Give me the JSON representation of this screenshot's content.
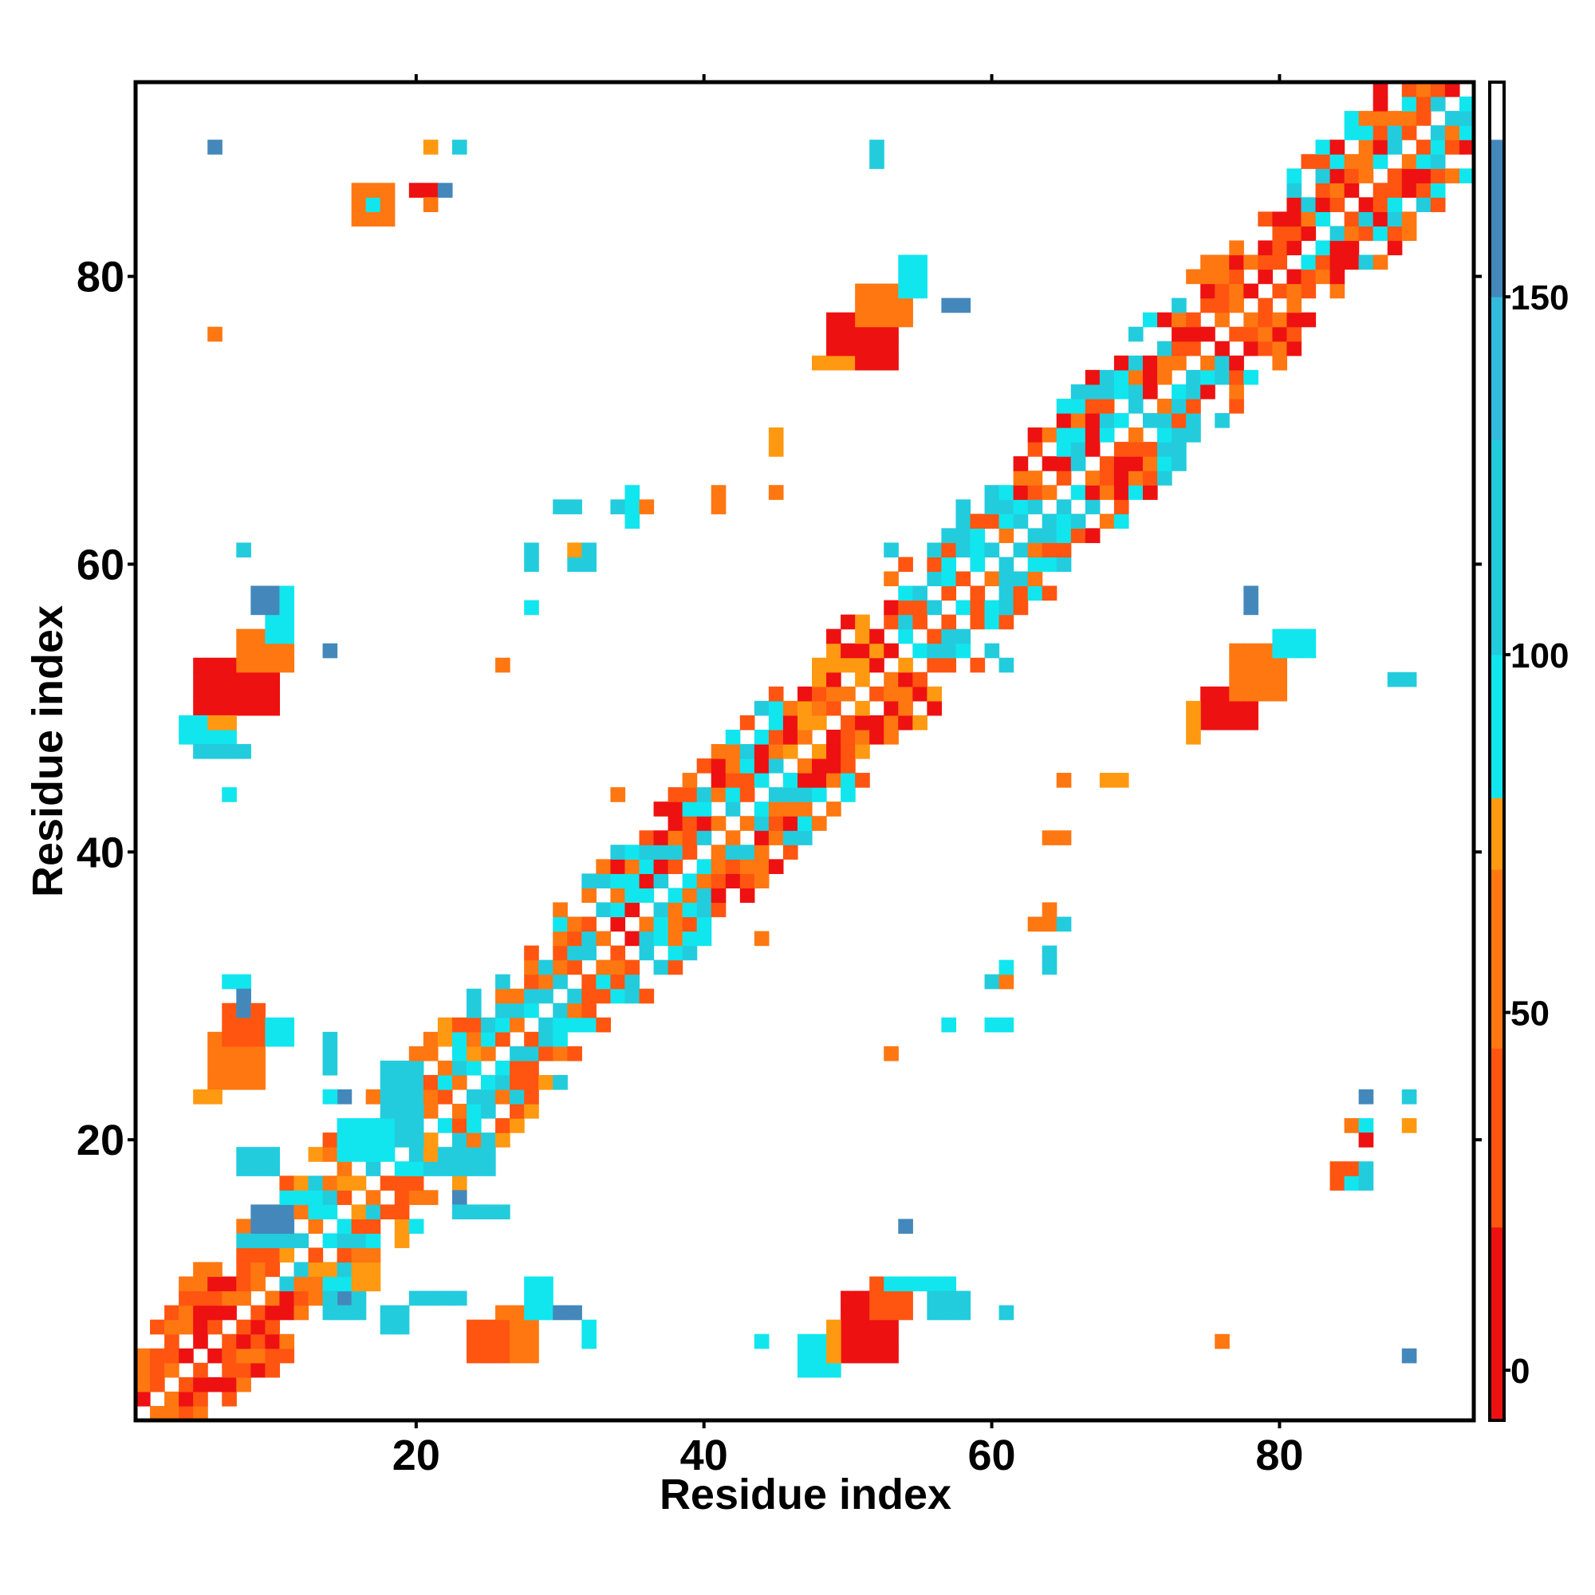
{
  "chart_data": {
    "type": "heatmap",
    "title": "",
    "xlabel": "Residue index",
    "ylabel": "Residue index",
    "xlim": [
      0.5,
      93.5
    ],
    "ylim": [
      0.5,
      93.5
    ],
    "xticks": [
      20,
      40,
      60,
      80
    ],
    "yticks": [
      20,
      40,
      60,
      80
    ],
    "xtick_labels": [
      "20",
      "40",
      "60",
      "80"
    ],
    "ytick_labels": [
      "20",
      "40",
      "60",
      "80"
    ],
    "grid": false,
    "colorbar": {
      "range": [
        -7,
        180
      ],
      "ticks": [
        0,
        50,
        100,
        150
      ],
      "tick_labels": [
        "0",
        "50",
        "100",
        "150"
      ],
      "bands": [
        {
          "from": -7,
          "to": 20,
          "color": "#ee1111"
        },
        {
          "from": 20,
          "to": 45,
          "color": "#ff5511"
        },
        {
          "from": 45,
          "to": 70,
          "color": "#ff7711"
        },
        {
          "from": 70,
          "to": 80,
          "color": "#ff9911"
        },
        {
          "from": 80,
          "to": 100,
          "color": "#11e6ee"
        },
        {
          "from": 100,
          "to": 130,
          "color": "#22ccdd"
        },
        {
          "from": 130,
          "to": 150,
          "color": "#33bbdd"
        },
        {
          "from": 150,
          "to": 172,
          "color": "#4488bb"
        },
        {
          "from": 172,
          "to": 180,
          "color": "#ffffff"
        }
      ]
    },
    "colors": {
      "red": "#ee1111",
      "orange_red": "#ff5511",
      "orange": "#ff7711",
      "amber": "#ff9911",
      "cyan": "#11e6ee",
      "sky": "#22ccdd",
      "steel": "#4488bb"
    },
    "diagonal": {
      "band_width": 6,
      "segments": [
        {
          "from": 1,
          "to": 10,
          "palette": [
            "red",
            "orange_red",
            "orange"
          ]
        },
        {
          "from": 10,
          "to": 25,
          "palette": [
            "cyan",
            "sky",
            "orange_red",
            "orange",
            "amber"
          ]
        },
        {
          "from": 25,
          "to": 34,
          "palette": [
            "orange_red",
            "orange",
            "sky",
            "cyan"
          ]
        },
        {
          "from": 34,
          "to": 46,
          "palette": [
            "cyan",
            "sky",
            "orange_red",
            "orange",
            "red"
          ]
        },
        {
          "from": 46,
          "to": 54,
          "palette": [
            "orange_red",
            "red",
            "amber",
            "orange"
          ]
        },
        {
          "from": 54,
          "to": 59,
          "palette": [
            "cyan",
            "sky",
            "orange_red"
          ]
        },
        {
          "from": 59,
          "to": 75,
          "palette": [
            "orange_red",
            "orange",
            "sky",
            "cyan",
            "red"
          ]
        },
        {
          "from": 75,
          "to": 81,
          "palette": [
            "red",
            "orange_red",
            "orange"
          ]
        },
        {
          "from": 81,
          "to": 93,
          "palette": [
            "sky",
            "cyan",
            "orange_red",
            "orange",
            "red"
          ]
        }
      ]
    },
    "contact_blocks": [
      {
        "x": [
          49,
          53
        ],
        "y": [
          74,
          77
        ],
        "color": "red"
      },
      {
        "x": [
          51,
          54
        ],
        "y": [
          77,
          79
        ],
        "color": "orange"
      },
      {
        "x": [
          54,
          55
        ],
        "y": [
          79,
          81
        ],
        "color": "cyan"
      },
      {
        "x": [
          57,
          58
        ],
        "y": [
          78,
          78
        ],
        "color": "steel"
      },
      {
        "x": [
          48,
          50
        ],
        "y": [
          74,
          74
        ],
        "color": "amber"
      },
      {
        "x": [
          5,
          10
        ],
        "y": [
          50,
          53
        ],
        "color": "red"
      },
      {
        "x": [
          8,
          11
        ],
        "y": [
          53,
          55
        ],
        "color": "orange"
      },
      {
        "x": [
          10,
          11
        ],
        "y": [
          55,
          58
        ],
        "color": "cyan"
      },
      {
        "x": [
          9,
          10
        ],
        "y": [
          57,
          58
        ],
        "color": "steel"
      },
      {
        "x": [
          4,
          7
        ],
        "y": [
          48,
          49
        ],
        "color": "cyan"
      },
      {
        "x": [
          6,
          7
        ],
        "y": [
          49,
          49
        ],
        "color": "amber"
      },
      {
        "x": [
          5,
          8
        ],
        "y": [
          47,
          47
        ],
        "color": "sky"
      },
      {
        "x": [
          75,
          78
        ],
        "y": [
          49,
          51
        ],
        "color": "red"
      },
      {
        "x": [
          77,
          80
        ],
        "y": [
          51,
          54
        ],
        "color": "orange"
      },
      {
        "x": [
          80,
          82
        ],
        "y": [
          54,
          55
        ],
        "color": "cyan"
      },
      {
        "x": [
          74,
          74
        ],
        "y": [
          48,
          50
        ],
        "color": "amber"
      },
      {
        "x": [
          50,
          53
        ],
        "y": [
          5,
          9
        ],
        "color": "red"
      },
      {
        "x": [
          52,
          54
        ],
        "y": [
          8,
          10
        ],
        "color": "orange_red"
      },
      {
        "x": [
          53,
          57
        ],
        "y": [
          10,
          10
        ],
        "color": "cyan"
      },
      {
        "x": [
          56,
          58
        ],
        "y": [
          8,
          9
        ],
        "color": "sky"
      },
      {
        "x": [
          47,
          49
        ],
        "y": [
          4,
          6
        ],
        "color": "cyan"
      },
      {
        "x": [
          49,
          49
        ],
        "y": [
          5,
          7
        ],
        "color": "amber"
      },
      {
        "x": [
          26,
          28
        ],
        "y": [
          5,
          8
        ],
        "color": "orange"
      },
      {
        "x": [
          24,
          26
        ],
        "y": [
          5,
          7
        ],
        "color": "orange_red"
      },
      {
        "x": [
          28,
          29
        ],
        "y": [
          8,
          10
        ],
        "color": "cyan"
      },
      {
        "x": [
          30,
          31
        ],
        "y": [
          8,
          8
        ],
        "color": "steel"
      },
      {
        "x": [
          6,
          9
        ],
        "y": [
          24,
          27
        ],
        "color": "orange"
      },
      {
        "x": [
          7,
          9
        ],
        "y": [
          27,
          29
        ],
        "color": "orange_red"
      },
      {
        "x": [
          10,
          11
        ],
        "y": [
          27,
          28
        ],
        "color": "cyan"
      },
      {
        "x": [
          5,
          6
        ],
        "y": [
          23,
          23
        ],
        "color": "amber"
      },
      {
        "x": [
          18,
          20
        ],
        "y": [
          20,
          25
        ],
        "color": "sky"
      },
      {
        "x": [
          15,
          18
        ],
        "y": [
          19,
          21
        ],
        "color": "cyan"
      },
      {
        "x": [
          8,
          10
        ],
        "y": [
          18,
          19
        ],
        "color": "sky"
      },
      {
        "x": [
          9,
          11
        ],
        "y": [
          14,
          15
        ],
        "color": "steel"
      },
      {
        "x": [
          8,
          12
        ],
        "y": [
          13,
          13
        ],
        "color": "sky"
      },
      {
        "x": [
          16,
          18
        ],
        "y": [
          84,
          86
        ],
        "color": "orange"
      },
      {
        "x": [
          17,
          17
        ],
        "y": [
          85,
          85
        ],
        "color": "cyan"
      },
      {
        "x": [
          20,
          21
        ],
        "y": [
          86,
          86
        ],
        "color": "red"
      },
      {
        "x": [
          21,
          21
        ],
        "y": [
          85,
          85
        ],
        "color": "orange"
      },
      {
        "x": [
          22,
          22
        ],
        "y": [
          86,
          86
        ],
        "color": "steel"
      },
      {
        "x": [
          21,
          21
        ],
        "y": [
          89,
          89
        ],
        "color": "amber"
      },
      {
        "x": [
          23,
          23
        ],
        "y": [
          89,
          89
        ],
        "color": "sky"
      },
      {
        "x": [
          6,
          6
        ],
        "y": [
          89,
          89
        ],
        "color": "steel"
      },
      {
        "x": [
          52,
          52
        ],
        "y": [
          88,
          89
        ],
        "color": "sky"
      },
      {
        "x": [
          6,
          6
        ],
        "y": [
          76,
          76
        ],
        "color": "orange"
      },
      {
        "x": [
          45,
          45
        ],
        "y": [
          68,
          69
        ],
        "color": "amber"
      },
      {
        "x": [
          45,
          45
        ],
        "y": [
          65,
          65
        ],
        "color": "orange"
      },
      {
        "x": [
          41,
          41
        ],
        "y": [
          64,
          65
        ],
        "color": "orange"
      },
      {
        "x": [
          34,
          36
        ],
        "y": [
          64,
          64
        ],
        "color": "sky"
      },
      {
        "x": [
          35,
          35
        ],
        "y": [
          63,
          65
        ],
        "color": "cyan"
      },
      {
        "x": [
          36,
          36
        ],
        "y": [
          64,
          64
        ],
        "color": "orange"
      },
      {
        "x": [
          30,
          31
        ],
        "y": [
          64,
          64
        ],
        "color": "sky"
      },
      {
        "x": [
          31,
          32
        ],
        "y": [
          60,
          61
        ],
        "color": "sky"
      },
      {
        "x": [
          31,
          31
        ],
        "y": [
          61,
          61
        ],
        "color": "amber"
      },
      {
        "x": [
          28,
          28
        ],
        "y": [
          60,
          61
        ],
        "color": "sky"
      },
      {
        "x": [
          28,
          28
        ],
        "y": [
          57,
          57
        ],
        "color": "cyan"
      },
      {
        "x": [
          26,
          26
        ],
        "y": [
          53,
          53
        ],
        "color": "orange"
      },
      {
        "x": [
          14,
          14
        ],
        "y": [
          54,
          54
        ],
        "color": "steel"
      },
      {
        "x": [
          8,
          8
        ],
        "y": [
          61,
          61
        ],
        "color": "sky"
      },
      {
        "x": [
          53,
          53
        ],
        "y": [
          61,
          61
        ],
        "color": "sky"
      },
      {
        "x": [
          61,
          61
        ],
        "y": [
          53,
          53
        ],
        "color": "sky"
      },
      {
        "x": [
          78,
          78
        ],
        "y": [
          57,
          58
        ],
        "color": "steel"
      },
      {
        "x": [
          88,
          89
        ],
        "y": [
          52,
          52
        ],
        "color": "sky"
      },
      {
        "x": [
          7,
          7
        ],
        "y": [
          44,
          44
        ],
        "color": "cyan"
      },
      {
        "x": [
          34,
          34
        ],
        "y": [
          44,
          44
        ],
        "color": "orange"
      },
      {
        "x": [
          65,
          65
        ],
        "y": [
          45,
          45
        ],
        "color": "orange"
      },
      {
        "x": [
          68,
          69
        ],
        "y": [
          45,
          45
        ],
        "color": "amber"
      },
      {
        "x": [
          64,
          65
        ],
        "y": [
          41,
          41
        ],
        "color": "orange"
      },
      {
        "x": [
          63,
          65
        ],
        "y": [
          35,
          35
        ],
        "color": "orange"
      },
      {
        "x": [
          64,
          64
        ],
        "y": [
          36,
          36
        ],
        "color": "orange"
      },
      {
        "x": [
          65,
          65
        ],
        "y": [
          35,
          35
        ],
        "color": "sky"
      },
      {
        "x": [
          64,
          64
        ],
        "y": [
          32,
          33
        ],
        "color": "sky"
      },
      {
        "x": [
          60,
          61
        ],
        "y": [
          31,
          31
        ],
        "color": "sky"
      },
      {
        "x": [
          61,
          61
        ],
        "y": [
          32,
          32
        ],
        "color": "cyan"
      },
      {
        "x": [
          61,
          61
        ],
        "y": [
          31,
          31
        ],
        "color": "orange"
      },
      {
        "x": [
          44,
          44
        ],
        "y": [
          34,
          34
        ],
        "color": "orange"
      },
      {
        "x": [
          57,
          57
        ],
        "y": [
          28,
          28
        ],
        "color": "cyan"
      },
      {
        "x": [
          60,
          61
        ],
        "y": [
          28,
          28
        ],
        "color": "cyan"
      },
      {
        "x": [
          53,
          53
        ],
        "y": [
          26,
          26
        ],
        "color": "orange"
      },
      {
        "x": [
          7,
          8
        ],
        "y": [
          31,
          31
        ],
        "color": "cyan"
      },
      {
        "x": [
          8,
          8
        ],
        "y": [
          29,
          30
        ],
        "color": "steel"
      },
      {
        "x": [
          14,
          14
        ],
        "y": [
          25,
          27
        ],
        "color": "sky"
      },
      {
        "x": [
          15,
          15
        ],
        "y": [
          23,
          23
        ],
        "color": "steel"
      },
      {
        "x": [
          14,
          14
        ],
        "y": [
          23,
          23
        ],
        "color": "cyan"
      },
      {
        "x": [
          22,
          25
        ],
        "y": [
          18,
          19
        ],
        "color": "sky"
      },
      {
        "x": [
          23,
          23
        ],
        "y": [
          16,
          16
        ],
        "color": "steel"
      },
      {
        "x": [
          23,
          26
        ],
        "y": [
          15,
          15
        ],
        "color": "sky"
      },
      {
        "x": [
          54,
          54
        ],
        "y": [
          14,
          14
        ],
        "color": "steel"
      },
      {
        "x": [
          86,
          86
        ],
        "y": [
          23,
          23
        ],
        "color": "steel"
      },
      {
        "x": [
          89,
          89
        ],
        "y": [
          23,
          23
        ],
        "color": "sky"
      },
      {
        "x": [
          85,
          86
        ],
        "y": [
          21,
          21
        ],
        "color": "orange"
      },
      {
        "x": [
          86,
          86
        ],
        "y": [
          21,
          21
        ],
        "color": "cyan"
      },
      {
        "x": [
          86,
          86
        ],
        "y": [
          20,
          20
        ],
        "color": "red"
      },
      {
        "x": [
          89,
          89
        ],
        "y": [
          21,
          21
        ],
        "color": "amber"
      },
      {
        "x": [
          84,
          85
        ],
        "y": [
          17,
          18
        ],
        "color": "orange_red"
      },
      {
        "x": [
          86,
          86
        ],
        "y": [
          17,
          18
        ],
        "color": "sky"
      },
      {
        "x": [
          85,
          85
        ],
        "y": [
          17,
          17
        ],
        "color": "cyan"
      },
      {
        "x": [
          20,
          23
        ],
        "y": [
          9,
          9
        ],
        "color": "sky"
      },
      {
        "x": [
          18,
          19
        ],
        "y": [
          7,
          8
        ],
        "color": "sky"
      },
      {
        "x": [
          32,
          32
        ],
        "y": [
          7,
          7
        ],
        "color": "cyan"
      },
      {
        "x": [
          32,
          32
        ],
        "y": [
          6,
          6
        ],
        "color": "cyan"
      },
      {
        "x": [
          44,
          44
        ],
        "y": [
          6,
          6
        ],
        "color": "cyan"
      },
      {
        "x": [
          76,
          76
        ],
        "y": [
          6,
          6
        ],
        "color": "orange"
      },
      {
        "x": [
          89,
          89
        ],
        "y": [
          5,
          5
        ],
        "color": "steel"
      },
      {
        "x": [
          61,
          61
        ],
        "y": [
          8,
          8
        ],
        "color": "sky"
      },
      {
        "x": [
          14,
          16
        ],
        "y": [
          8,
          9
        ],
        "color": "sky"
      },
      {
        "x": [
          15,
          15
        ],
        "y": [
          9,
          9
        ],
        "color": "steel"
      },
      {
        "x": [
          16,
          17
        ],
        "y": [
          10,
          11
        ],
        "color": "amber"
      }
    ]
  }
}
